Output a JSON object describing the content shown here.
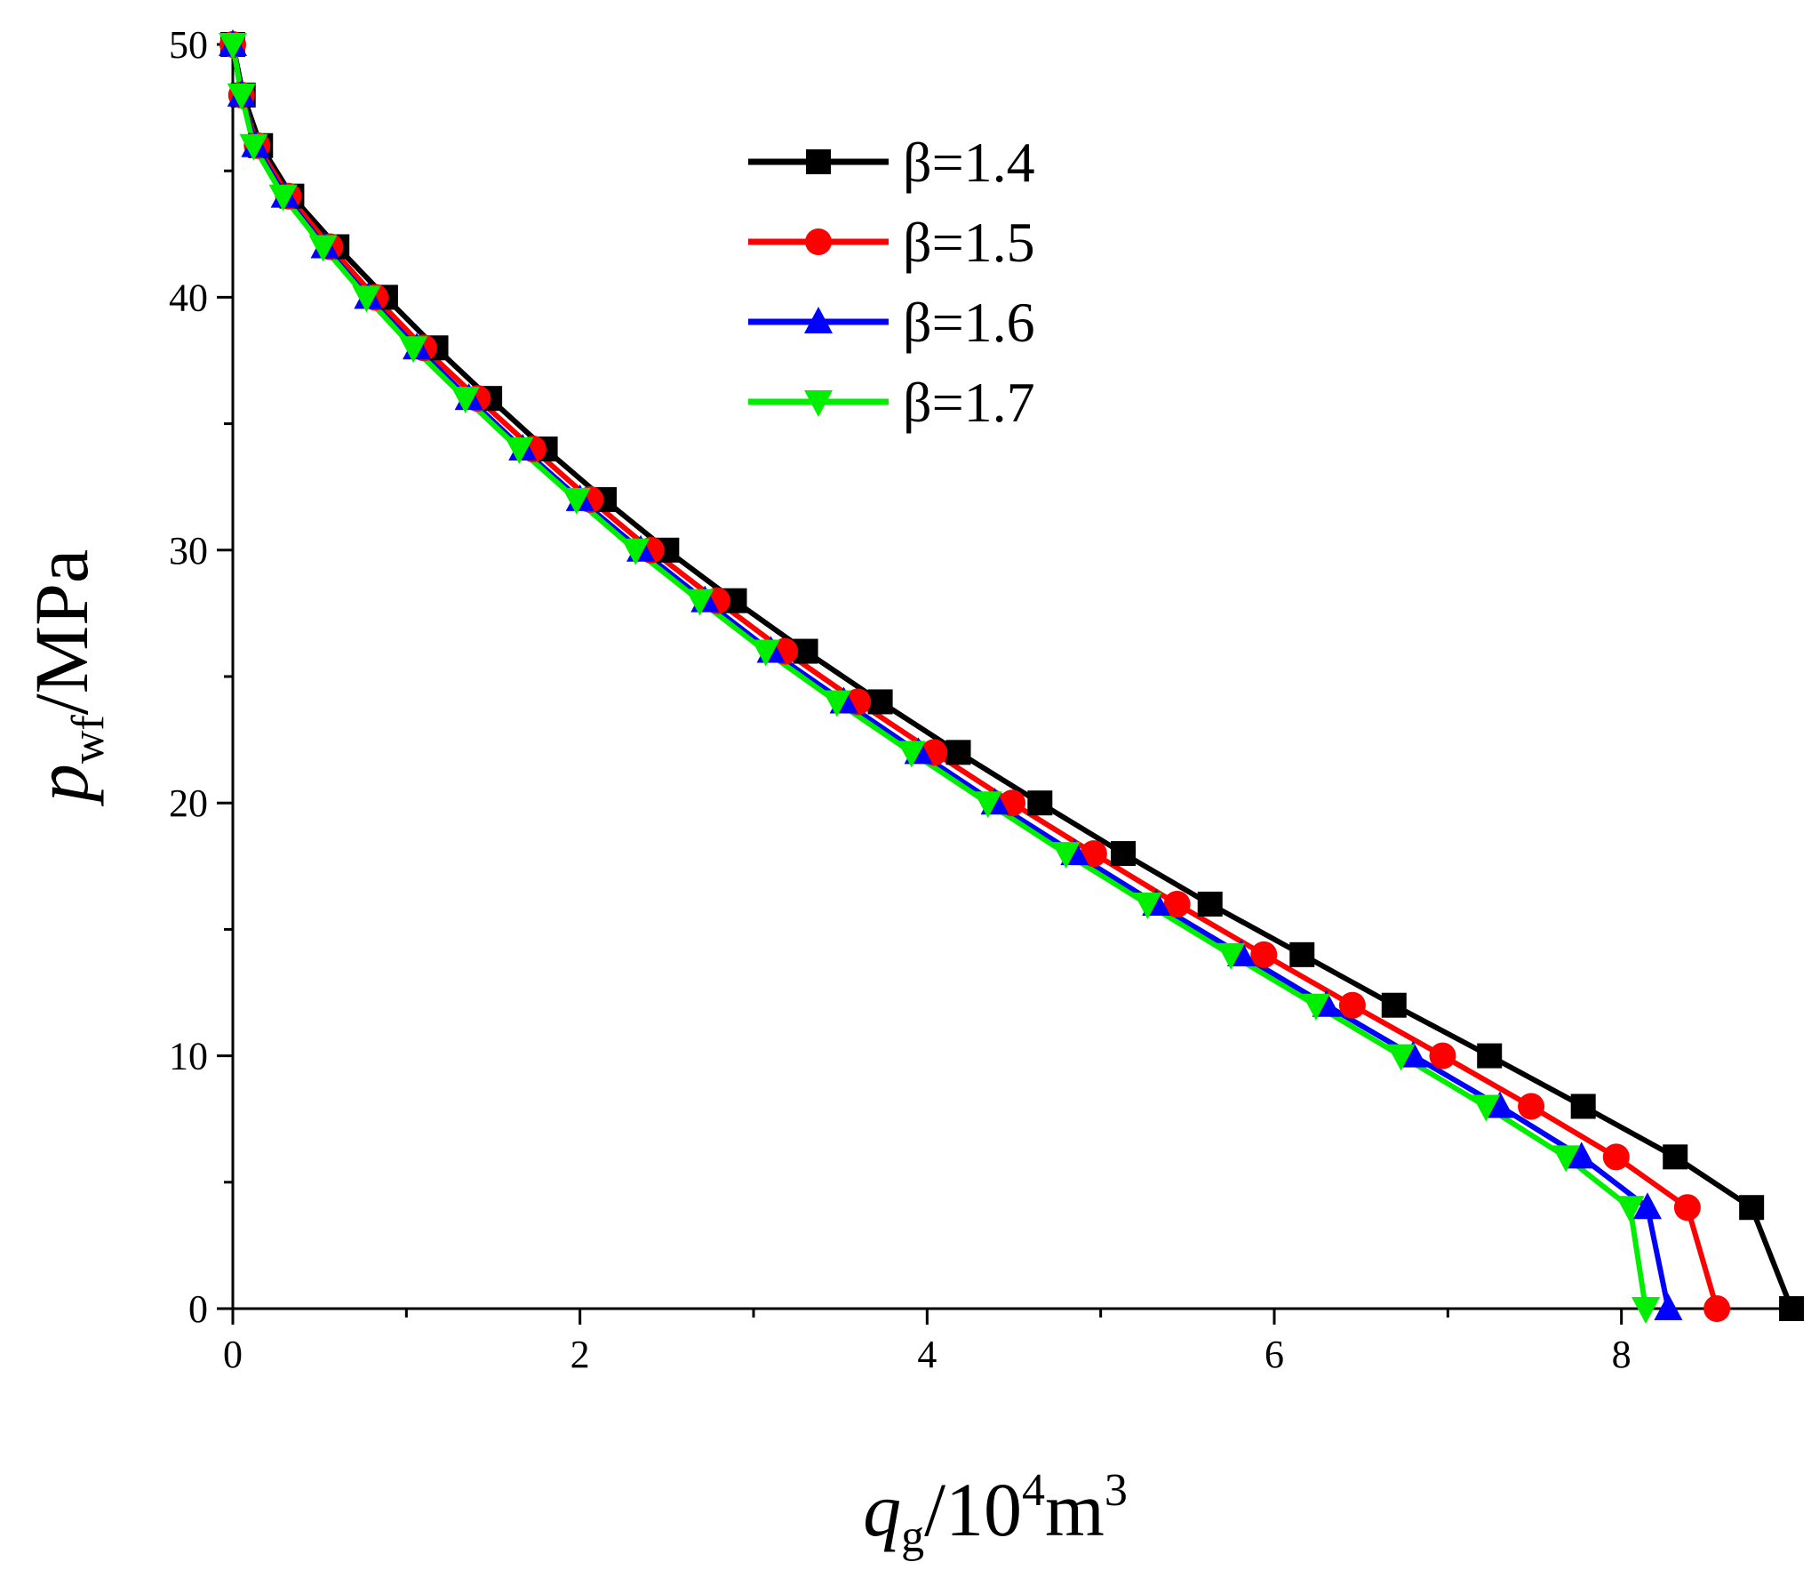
{
  "chart_data": {
    "type": "line",
    "xlabel": {
      "main": "q",
      "sub": "g",
      "rest": "/10",
      "sup": "4",
      "rest2": "m",
      "sup2": "3"
    },
    "ylabel": {
      "main": "p",
      "sub": "wf",
      "rest": "/MPa"
    },
    "xlim": [
      0,
      9
    ],
    "ylim": [
      0,
      50
    ],
    "x_ticks": [
      0,
      2,
      4,
      6,
      8
    ],
    "y_ticks": [
      0,
      10,
      20,
      30,
      40,
      50
    ],
    "x_tick_labels": [
      "0",
      "2",
      "4",
      "6",
      "8"
    ],
    "y_tick_labels": [
      "0",
      "10",
      "20",
      "30",
      "40",
      "50"
    ],
    "grid": false,
    "legend_position": "top-center",
    "y": [
      50,
      48,
      46,
      44,
      42,
      40,
      38,
      36,
      34,
      32,
      30,
      28,
      26,
      24,
      22,
      20,
      18,
      16,
      14,
      12,
      10,
      8,
      6,
      4,
      0
    ],
    "series": [
      {
        "name": "β=1.4",
        "color": "#000000",
        "marker": "square",
        "x": [
          0.0,
          0.06,
          0.16,
          0.34,
          0.6,
          0.88,
          1.17,
          1.48,
          1.8,
          2.14,
          2.5,
          2.89,
          3.3,
          3.73,
          4.18,
          4.65,
          5.13,
          5.63,
          6.16,
          6.69,
          7.24,
          7.78,
          8.31,
          8.75,
          8.98
        ]
      },
      {
        "name": "β=1.5",
        "color": "#ff0000",
        "marker": "circle",
        "x": [
          0.0,
          0.05,
          0.14,
          0.32,
          0.56,
          0.82,
          1.1,
          1.41,
          1.73,
          2.06,
          2.41,
          2.79,
          3.18,
          3.6,
          4.04,
          4.49,
          4.96,
          5.44,
          5.94,
          6.45,
          6.97,
          7.48,
          7.97,
          8.38,
          8.55
        ]
      },
      {
        "name": "β=1.6",
        "color": "#0000ff",
        "marker": "triangle-up",
        "x": [
          0.0,
          0.05,
          0.13,
          0.3,
          0.53,
          0.78,
          1.06,
          1.36,
          1.67,
          2.0,
          2.35,
          2.72,
          3.1,
          3.52,
          3.95,
          4.39,
          4.85,
          5.32,
          5.81,
          6.3,
          6.8,
          7.3,
          7.77,
          8.15,
          8.27
        ]
      },
      {
        "name": "β=1.7",
        "color": "#00ee00",
        "marker": "triangle-down",
        "x": [
          0.0,
          0.05,
          0.12,
          0.29,
          0.52,
          0.77,
          1.04,
          1.34,
          1.65,
          1.98,
          2.32,
          2.69,
          3.07,
          3.48,
          3.91,
          4.35,
          4.8,
          5.27,
          5.75,
          6.24,
          6.73,
          7.22,
          7.68,
          8.05,
          8.14
        ]
      }
    ]
  }
}
